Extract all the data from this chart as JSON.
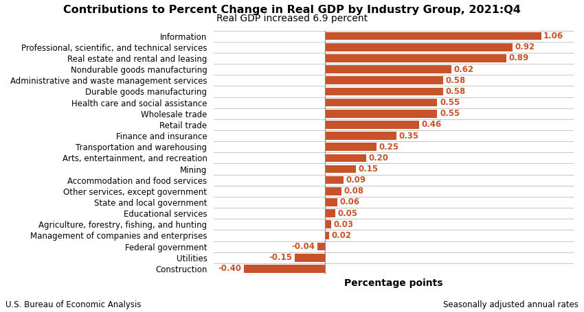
{
  "title": "Contributions to Percent Change in Real GDP by Industry Group, 2021:Q4",
  "subtitle": "Real GDP increased 6.9 percent",
  "xlabel": "Percentage points",
  "footer_left": "U.S. Bureau of Economic Analysis",
  "footer_right": "Seasonally adjusted annual rates",
  "bar_color": "#C8522A",
  "background_color": "#FFFFFF",
  "categories": [
    "Information",
    "Professional, scientific, and technical services",
    "Real estate and rental and leasing",
    "Nondurable goods manufacturing",
    "Administrative and waste management services",
    "Durable goods manufacturing",
    "Health care and social assistance",
    "Wholesale trade",
    "Retail trade",
    "Finance and insurance",
    "Transportation and warehousing",
    "Arts, entertainment, and recreation",
    "Mining",
    "Accommodation and food services",
    "Other services, except government",
    "State and local government",
    "Educational services",
    "Agriculture, forestry, fishing, and hunting",
    "Management of companies and enterprises",
    "Federal government",
    "Utilities",
    "Construction"
  ],
  "values": [
    1.06,
    0.92,
    0.89,
    0.62,
    0.58,
    0.58,
    0.55,
    0.55,
    0.46,
    0.35,
    0.25,
    0.2,
    0.15,
    0.09,
    0.08,
    0.06,
    0.05,
    0.03,
    0.02,
    -0.04,
    -0.15,
    -0.4
  ],
  "xlim": [
    -0.55,
    1.22
  ],
  "title_fontsize": 11.5,
  "subtitle_fontsize": 10,
  "label_fontsize": 8.5,
  "value_fontsize": 8.5,
  "xlabel_fontsize": 10,
  "footer_fontsize": 8.5,
  "bar_height": 0.72,
  "grid_color": "#BBBBBB",
  "zero_line_color": "#888888"
}
